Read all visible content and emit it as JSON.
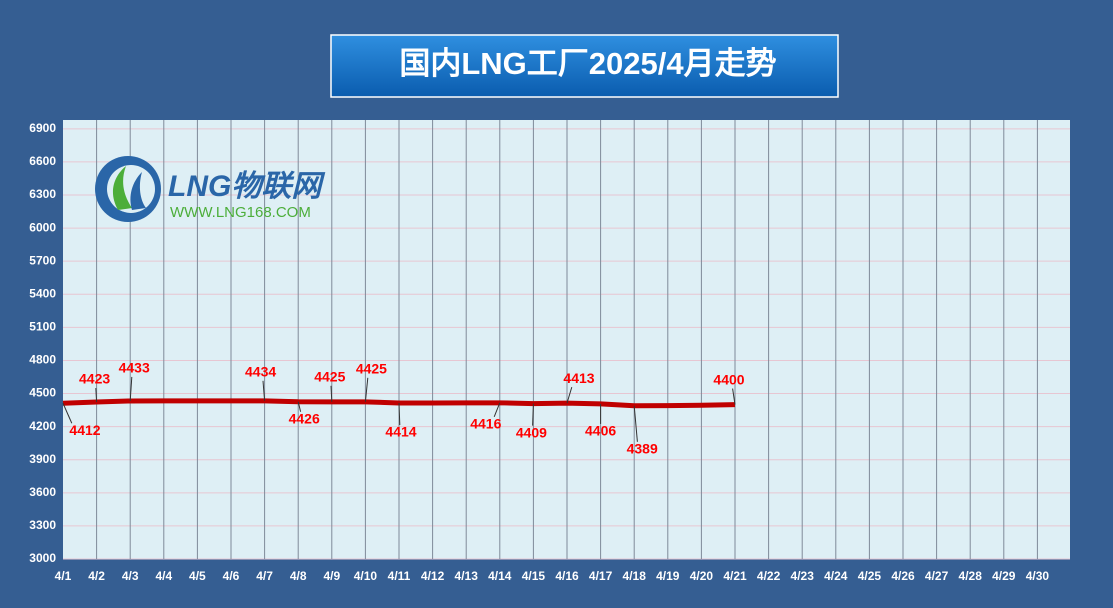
{
  "chart_data": {
    "type": "line",
    "title": "国内LNG工厂2025/4月走势",
    "logo": {
      "name": "LNG物联网",
      "url": "WWW.LNG168.COM"
    },
    "categories": [
      "4/1",
      "4/2",
      "4/3",
      "4/4",
      "4/5",
      "4/6",
      "4/7",
      "4/8",
      "4/9",
      "4/10",
      "4/11",
      "4/12",
      "4/13",
      "4/14",
      "4/15",
      "4/16",
      "4/17",
      "4/18",
      "4/19",
      "4/20",
      "4/21",
      "4/22",
      "4/23",
      "4/24",
      "4/25",
      "4/26",
      "4/27",
      "4/28",
      "4/29",
      "4/30"
    ],
    "series": [
      {
        "name": "LNG",
        "color": "#c00000",
        "values": [
          4412,
          4423,
          4433,
          4434,
          4434,
          4434,
          4434,
          4426,
          4425,
          4425,
          4414,
          4414,
          4415,
          4416,
          4409,
          4413,
          4406,
          4389,
          4390,
          4394,
          4400,
          null,
          null,
          null,
          null,
          null,
          null,
          null,
          null,
          null
        ],
        "value_labels": [
          "4412",
          "4423",
          "4433",
          null,
          null,
          null,
          "4434",
          "4426",
          "4425",
          "4425",
          "4414",
          null,
          null,
          "4416",
          "4409",
          "4413",
          "4406",
          "4389",
          null,
          null,
          "4400",
          null,
          null,
          null,
          null,
          null,
          null,
          null,
          null,
          null
        ]
      }
    ],
    "ylim": [
      3000,
      6980
    ],
    "yticks": [
      3000,
      3300,
      3600,
      3900,
      4200,
      4500,
      4800,
      5100,
      5400,
      5700,
      6000,
      6300,
      6600,
      6900
    ],
    "grid": true
  }
}
